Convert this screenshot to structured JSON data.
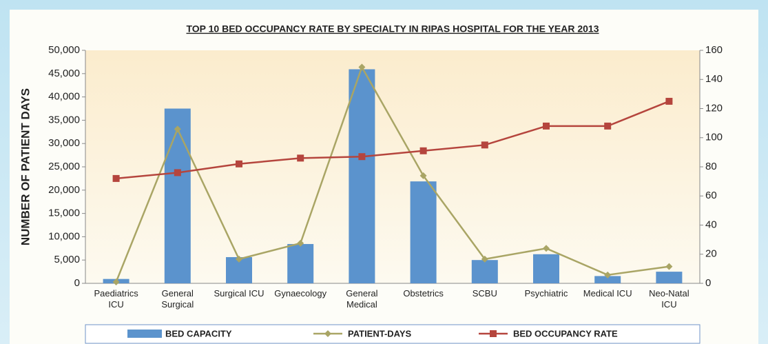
{
  "chart_data": {
    "type": "combo",
    "title": "TOP 10 BED OCCUPANCY RATE BY SPECIALTY IN RIPAS HOSPITAL FOR THE YEAR 2013",
    "y_label": "NUMBER OF PATIENT DAYS",
    "categories": [
      "Paediatrics ICU",
      "General Surgical",
      "Surgical ICU",
      "Gynaecology",
      "General Medical",
      "Obstetrics",
      "SCBU",
      "Psychiatric",
      "Medical ICU",
      "Neo-Natal ICU"
    ],
    "series": [
      {
        "name": "BED CAPACITY",
        "type": "bar",
        "axis": "y2",
        "color": "#5b93cd",
        "values": [
          3,
          120,
          18,
          27,
          147,
          70,
          16,
          20,
          5,
          8
        ]
      },
      {
        "name": "PATIENT-DAYS",
        "type": "line",
        "axis": "y",
        "color": "#a9a565",
        "marker": "diamond",
        "values": [
          300,
          33100,
          5200,
          8600,
          46400,
          23100,
          5200,
          7500,
          1800,
          3600
        ]
      },
      {
        "name": "BED OCCUPANCY RATE",
        "type": "line",
        "axis": "y2",
        "color": "#b5453d",
        "marker": "square",
        "values": [
          72,
          76,
          82,
          86,
          87,
          91,
          95,
          108,
          108,
          125
        ]
      }
    ],
    "ylim": [
      0,
      50000
    ],
    "yticks": [
      0,
      {
        "value": 5000,
        "label": "5,000"
      },
      {
        "value": 10000,
        "label": "10,000"
      },
      {
        "value": 15000,
        "label": "15,000"
      },
      {
        "value": 20000,
        "label": "20,000"
      },
      {
        "value": 25000,
        "label": "25,000"
      },
      {
        "value": 30000,
        "label": "30,000"
      },
      {
        "value": 35000,
        "label": "35,000"
      },
      {
        "value": 40000,
        "label": "40,000"
      },
      {
        "value": 45000,
        "label": "45,000"
      },
      {
        "value": 50000,
        "label": "50,000"
      }
    ],
    "y2lim": [
      0,
      160
    ],
    "y2ticks": [
      0,
      20,
      40,
      60,
      80,
      100,
      120,
      140,
      160
    ],
    "legend": "bottom"
  }
}
